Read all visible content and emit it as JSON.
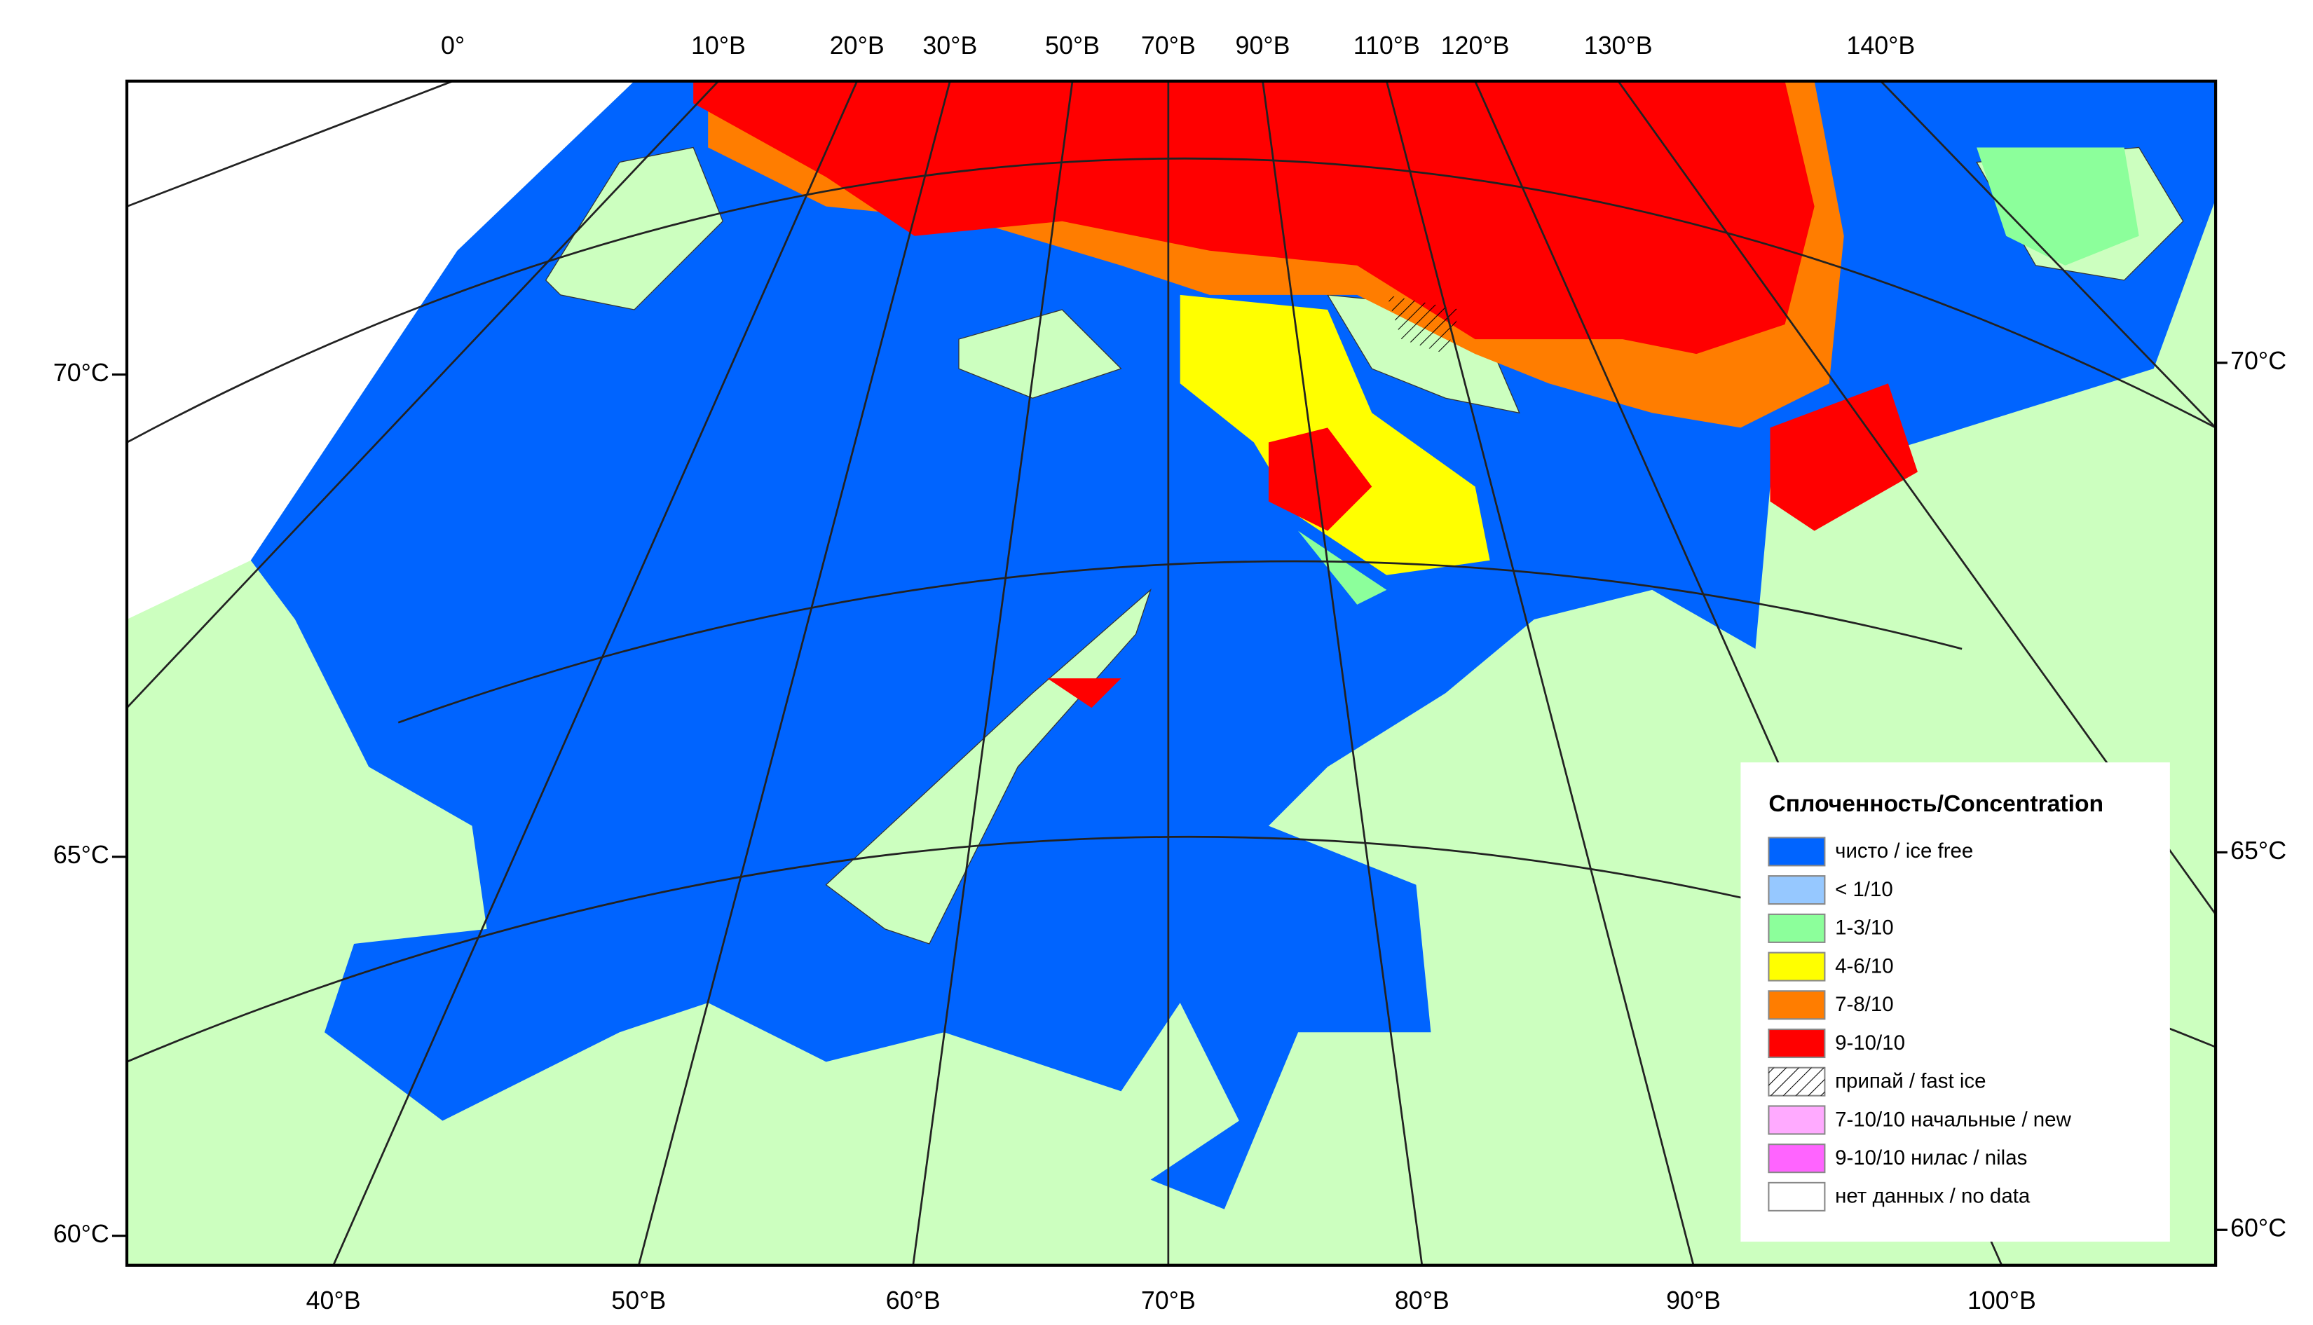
{
  "map": {
    "top_labels": [
      "0°",
      "10°В",
      "20°В",
      "30°В",
      "50°В",
      "70°В",
      "90°В",
      "110°В",
      "120°В",
      "130°В",
      "140°В"
    ],
    "bottom_labels": [
      "40°В",
      "50°В",
      "60°В",
      "70°В",
      "80°В",
      "90°В",
      "100°В"
    ],
    "left_labels": [
      "70°С",
      "65°С",
      "60°С"
    ],
    "right_labels": [
      "70°С",
      "65°С",
      "60°С"
    ],
    "legend": {
      "title": "Сплоченность/Concentration",
      "items": [
        {
          "label": "чисто / ice free",
          "color": "#0064ff"
        },
        {
          "label": "< 1/10",
          "color": "#96c8ff"
        },
        {
          "label": "1-3/10",
          "color": "#8cff9b"
        },
        {
          "label": "4-6/10",
          "color": "#ffff00"
        },
        {
          "label": "7-8/10",
          "color": "#ff7d00"
        },
        {
          "label": "9-10/10",
          "color": "#ff0000"
        },
        {
          "label": "припай / fast ice",
          "color": "#ffffff"
        },
        {
          "label": "7-10/10 начальные / new",
          "color": "#ffaaff"
        },
        {
          "label": "9-10/10 нилас / nilas",
          "color": "#ff64ff"
        },
        {
          "label": "нет данных / no data",
          "color": "#ffffff"
        }
      ]
    }
  }
}
